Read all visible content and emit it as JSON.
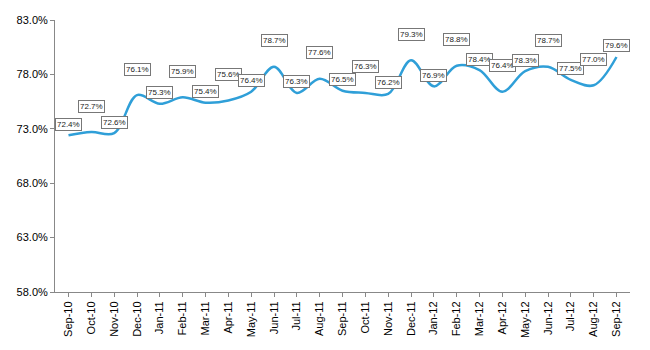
{
  "chart_data": {
    "type": "line",
    "categories": [
      "Sep-10",
      "Oct-10",
      "Nov-10",
      "Dec-10",
      "Jan-11",
      "Feb-11",
      "Mar-11",
      "Apr-11",
      "May-11",
      "Jun-11",
      "Jul-11",
      "Aug-11",
      "Sep-11",
      "Oct-11",
      "Nov-11",
      "Dec-11",
      "Jan-12",
      "Feb-12",
      "Mar-12",
      "Apr-12",
      "May-12",
      "Jun-12",
      "Jul-12",
      "Aug-12",
      "Sep-12"
    ],
    "values": [
      72.4,
      72.7,
      72.6,
      76.1,
      75.3,
      75.9,
      75.4,
      75.6,
      76.4,
      78.7,
      76.3,
      77.6,
      76.5,
      76.3,
      76.2,
      79.3,
      76.9,
      78.8,
      78.4,
      76.4,
      78.3,
      78.7,
      77.5,
      77.0,
      79.6
    ],
    "value_labels": [
      "72.4%",
      "72.7%",
      "72.6%",
      "76.1%",
      "75.3%",
      "75.9%",
      "75.4%",
      "75.6%",
      "76.4%",
      "78.7%",
      "76.3%",
      "77.6%",
      "76.5%",
      "76.3%",
      "76.2%",
      "79.3%",
      "76.9%",
      "78.8%",
      "78.4%",
      "76.4%",
      "78.3%",
      "78.7%",
      "77.5%",
      "77.0%",
      "79.6%"
    ],
    "color": "#2f9fd8",
    "data_labels": true,
    "grid": false,
    "line_style": "smooth",
    "ylim": [
      58,
      83
    ],
    "yticks": [
      {
        "value": 58,
        "label": "58.0%"
      },
      {
        "value": 63,
        "label": "63.0%"
      },
      {
        "value": 68,
        "label": "68.0%"
      },
      {
        "value": 73,
        "label": "73.0%"
      },
      {
        "value": 78,
        "label": "78.0%"
      },
      {
        "value": 83,
        "label": "83.0%"
      }
    ]
  }
}
